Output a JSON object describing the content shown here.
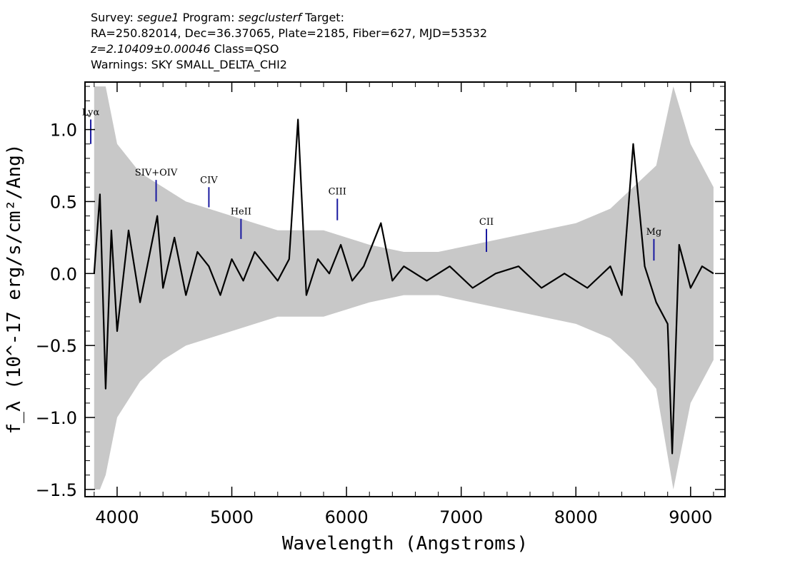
{
  "header": {
    "survey_label": "Survey:",
    "survey": "segue1",
    "program_label": "Program:",
    "program": "segclusterf",
    "target_label": "Target:",
    "line2": "RA=250.82014, Dec=36.37065, Plate=2185, Fiber=627, MJD=53532",
    "redshift": "z=2.10409±0.00046",
    "class": "Class=QSO",
    "warnings": "Warnings: SKY SMALL_DELTA_CHI2"
  },
  "chart_data": {
    "type": "line",
    "title": "",
    "xlabel": "Wavelength (Angstroms)",
    "ylabel": "f_λ (10^-17 erg/s/cm²/Ang)",
    "xlim": [
      3720,
      9300
    ],
    "ylim": [
      -1.55,
      1.33
    ],
    "x_ticks": [
      4000,
      5000,
      6000,
      7000,
      8000,
      9000
    ],
    "x_tick_labels": [
      "4000",
      "5000",
      "6000",
      "7000",
      "8000",
      "9000"
    ],
    "y_ticks": [
      -1.5,
      -1.0,
      -0.5,
      0.0,
      0.5,
      1.0
    ],
    "y_tick_labels": [
      "−1.5",
      "−1.0",
      "−0.5",
      "0.0",
      "0.5",
      "1.0"
    ],
    "grid": false,
    "series": [
      {
        "color": "#000000",
        "x": [
          3800,
          3850,
          3900,
          3950,
          4000,
          4100,
          4200,
          4300,
          4350,
          4400,
          4500,
          4600,
          4700,
          4800,
          4900,
          5000,
          5100,
          5200,
          5300,
          5400,
          5500,
          5577,
          5650,
          5750,
          5850,
          5950,
          6050,
          6150,
          6300,
          6400,
          6500,
          6700,
          6900,
          7100,
          7300,
          7500,
          7700,
          7900,
          8100,
          8300,
          8400,
          8500,
          8600,
          8700,
          8800,
          8840,
          8900,
          9000,
          9100,
          9200
        ],
        "y": [
          0.0,
          0.55,
          -0.8,
          0.3,
          -0.4,
          0.3,
          -0.2,
          0.2,
          0.4,
          -0.1,
          0.25,
          -0.15,
          0.15,
          0.05,
          -0.15,
          0.1,
          -0.05,
          0.15,
          0.05,
          -0.05,
          0.1,
          1.07,
          -0.15,
          0.1,
          0.0,
          0.2,
          -0.05,
          0.05,
          0.35,
          -0.05,
          0.05,
          -0.05,
          0.05,
          -0.1,
          0.0,
          0.05,
          -0.1,
          0.0,
          -0.1,
          0.05,
          -0.15,
          0.9,
          0.05,
          -0.2,
          -0.35,
          -1.25,
          0.2,
          -0.1,
          0.05,
          0.0
        ]
      },
      {
        "color": "#c8c8c8",
        "x": [
          3800,
          3850,
          3900,
          4000,
          4200,
          4400,
          4600,
          4800,
          5000,
          5200,
          5400,
          5577,
          5800,
          6000,
          6200,
          6500,
          6800,
          7100,
          7400,
          7700,
          8000,
          8300,
          8500,
          8700,
          8850,
          9000,
          9200
        ],
        "y_upper": [
          1.3,
          1.3,
          1.3,
          0.9,
          0.7,
          0.6,
          0.5,
          0.45,
          0.4,
          0.35,
          0.3,
          0.3,
          0.3,
          0.25,
          0.2,
          0.15,
          0.15,
          0.2,
          0.25,
          0.3,
          0.35,
          0.45,
          0.6,
          0.75,
          1.3,
          0.9,
          0.6
        ],
        "y_lower": [
          -1.5,
          -1.5,
          -1.4,
          -1.0,
          -0.75,
          -0.6,
          -0.5,
          -0.45,
          -0.4,
          -0.35,
          -0.3,
          -0.3,
          -0.3,
          -0.25,
          -0.2,
          -0.15,
          -0.15,
          -0.2,
          -0.25,
          -0.3,
          -0.35,
          -0.45,
          -0.6,
          -0.8,
          -1.5,
          -0.9,
          -0.6
        ]
      }
    ],
    "line_labels": [
      {
        "label": "Lyα",
        "x": 3770,
        "y_top": 1.07,
        "y_bottom": 0.9
      },
      {
        "label": "SIV+OIV",
        "x": 4340,
        "y_top": 0.65,
        "y_bottom": 0.5
      },
      {
        "label": "CIV",
        "x": 4800,
        "y_top": 0.6,
        "y_bottom": 0.46
      },
      {
        "label": "HeII",
        "x": 5080,
        "y_top": 0.38,
        "y_bottom": 0.24
      },
      {
        "label": "CIII",
        "x": 5920,
        "y_top": 0.52,
        "y_bottom": 0.37
      },
      {
        "label": "CII",
        "x": 7220,
        "y_top": 0.31,
        "y_bottom": 0.15
      },
      {
        "label": "Mg",
        "x": 8680,
        "y_top": 0.24,
        "y_bottom": 0.09
      }
    ]
  },
  "colors": {
    "flux": "#000000",
    "error_band": "#c8c8c8",
    "line_marker": "#1a1aa0"
  }
}
